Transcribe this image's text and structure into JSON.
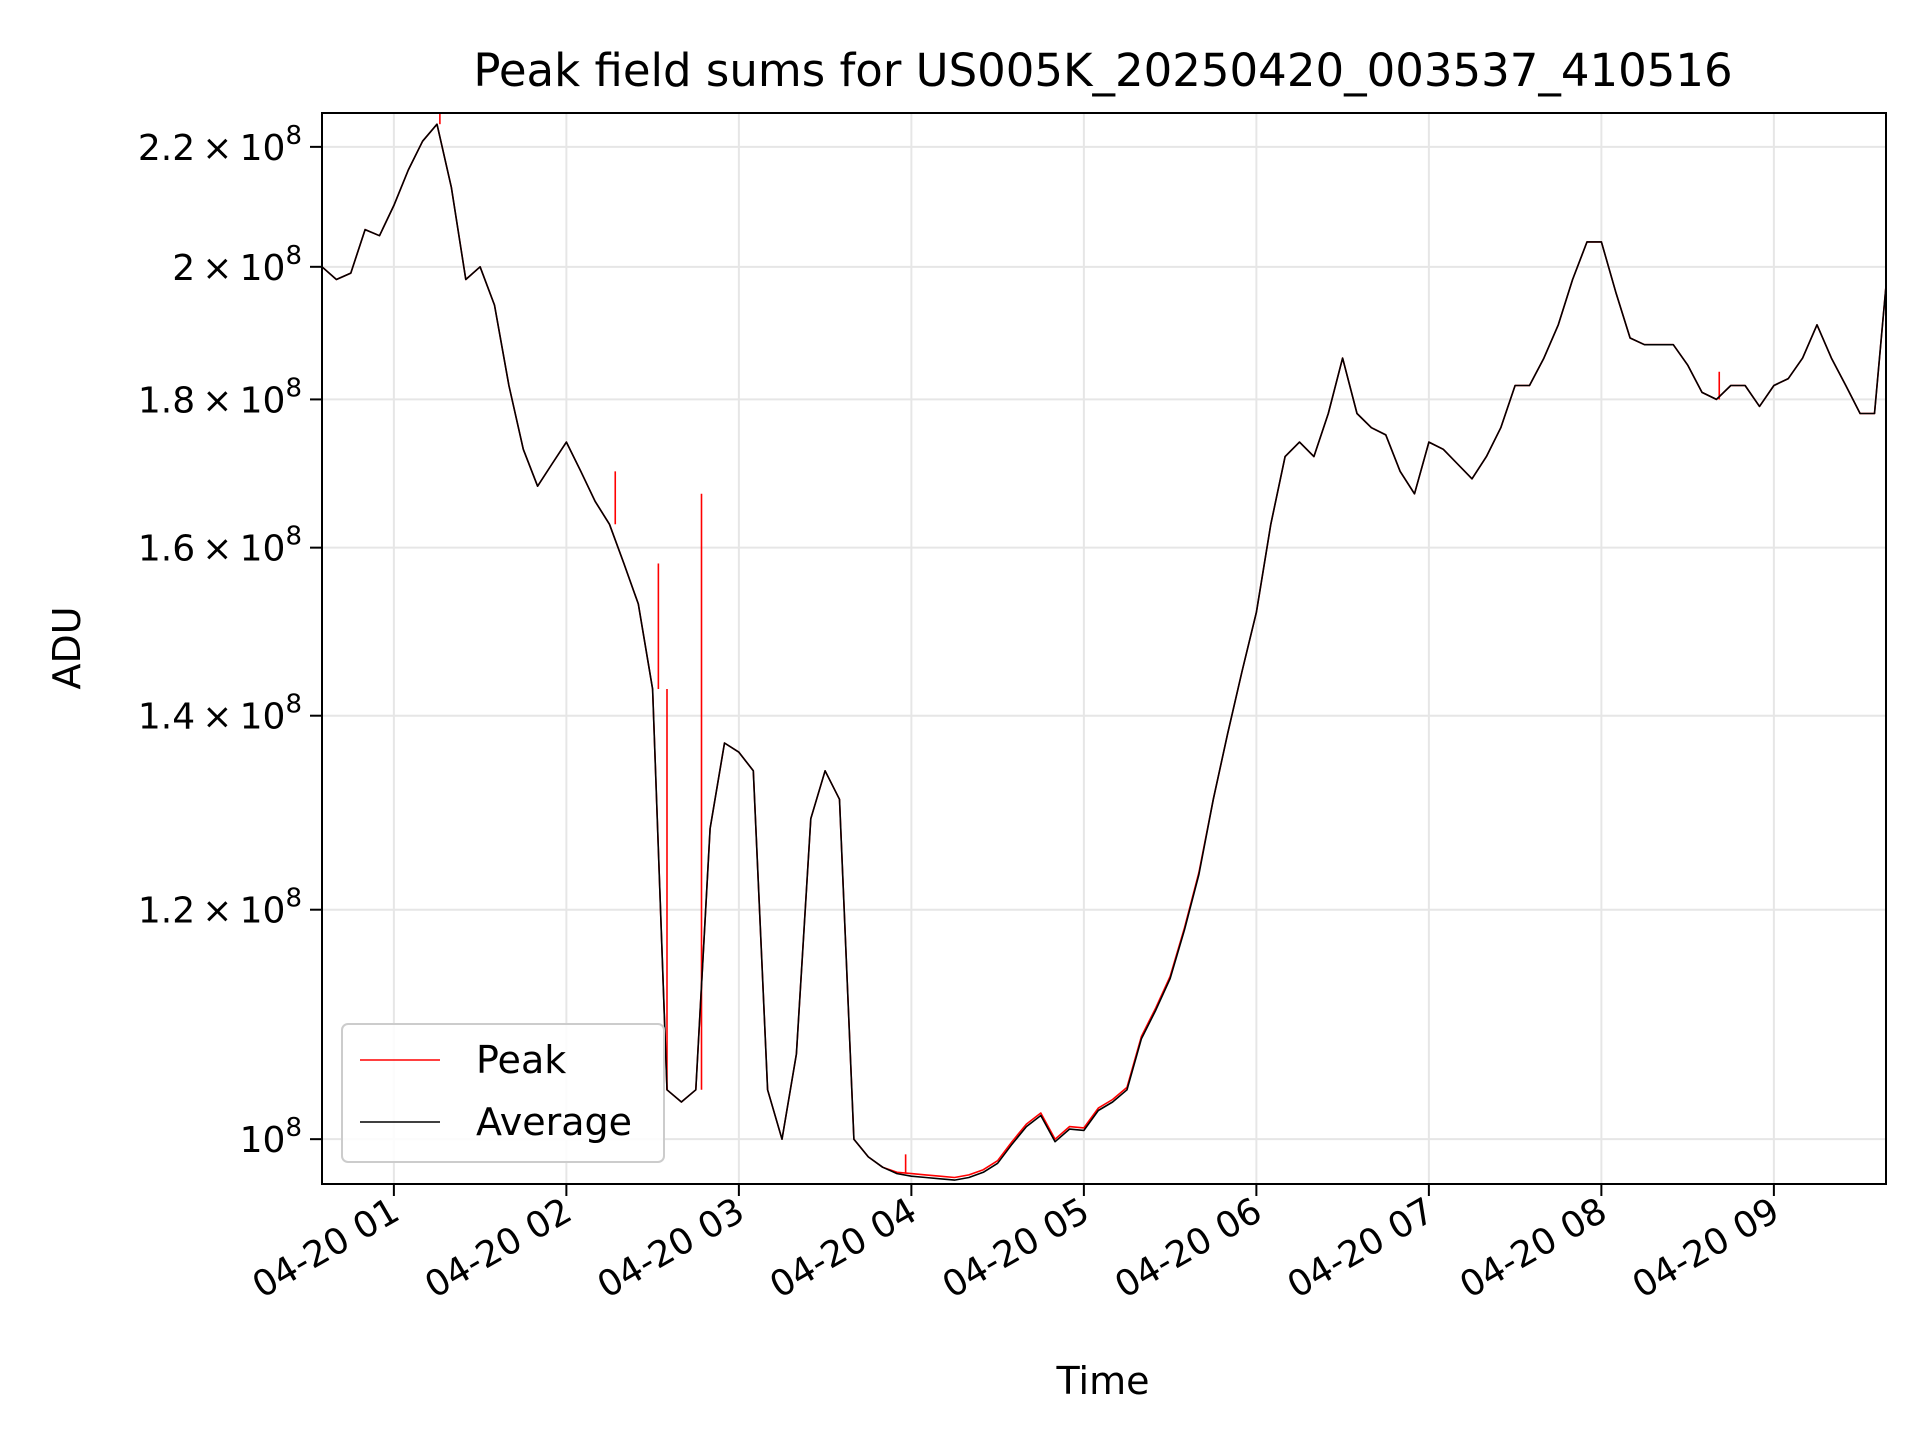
{
  "chart_data": {
    "type": "line",
    "title": "Peak field sums for US005K_20250420_003537_410516",
    "xlabel": "Time",
    "ylabel": "ADU",
    "yscale": "log",
    "grid": true,
    "legend_position": "lower-left",
    "xlim": [
      "2025-04-20 00:35",
      "2025-04-20 09:39"
    ],
    "ylim": [
      96500000,
      226000000
    ],
    "x_ticks": [
      {
        "value": "2025-04-20 01:00",
        "label": "04-20 01"
      },
      {
        "value": "2025-04-20 02:00",
        "label": "04-20 02"
      },
      {
        "value": "2025-04-20 03:00",
        "label": "04-20 03"
      },
      {
        "value": "2025-04-20 04:00",
        "label": "04-20 04"
      },
      {
        "value": "2025-04-20 05:00",
        "label": "04-20 05"
      },
      {
        "value": "2025-04-20 06:00",
        "label": "04-20 06"
      },
      {
        "value": "2025-04-20 07:00",
        "label": "04-20 07"
      },
      {
        "value": "2025-04-20 08:00",
        "label": "04-20 08"
      },
      {
        "value": "2025-04-20 09:00",
        "label": "04-20 09"
      }
    ],
    "y_ticks": [
      {
        "value": 100000000,
        "mant": "",
        "base": "10",
        "exp": "8"
      },
      {
        "value": 120000000,
        "mant": "1.2",
        "base": "10",
        "exp": "8"
      },
      {
        "value": 140000000,
        "mant": "1.4",
        "base": "10",
        "exp": "8"
      },
      {
        "value": 160000000,
        "mant": "1.6",
        "base": "10",
        "exp": "8"
      },
      {
        "value": 180000000,
        "mant": "1.8",
        "base": "10",
        "exp": "8"
      },
      {
        "value": 200000000,
        "mant": "2",
        "base": "10",
        "exp": "8"
      },
      {
        "value": 220000000,
        "mant": "2.2",
        "base": "10",
        "exp": "8"
      }
    ],
    "x": [
      "2025-04-20 00:35",
      "2025-04-20 00:40",
      "2025-04-20 00:45",
      "2025-04-20 00:50",
      "2025-04-20 00:55",
      "2025-04-20 01:00",
      "2025-04-20 01:05",
      "2025-04-20 01:10",
      "2025-04-20 01:15",
      "2025-04-20 01:20",
      "2025-04-20 01:25",
      "2025-04-20 01:30",
      "2025-04-20 01:35",
      "2025-04-20 01:40",
      "2025-04-20 01:45",
      "2025-04-20 01:50",
      "2025-04-20 01:55",
      "2025-04-20 02:00",
      "2025-04-20 02:05",
      "2025-04-20 02:10",
      "2025-04-20 02:15",
      "2025-04-20 02:20",
      "2025-04-20 02:25",
      "2025-04-20 02:30",
      "2025-04-20 02:35",
      "2025-04-20 02:40",
      "2025-04-20 02:45",
      "2025-04-20 02:50",
      "2025-04-20 02:55",
      "2025-04-20 03:00",
      "2025-04-20 03:05",
      "2025-04-20 03:10",
      "2025-04-20 03:15",
      "2025-04-20 03:20",
      "2025-04-20 03:25",
      "2025-04-20 03:30",
      "2025-04-20 03:35",
      "2025-04-20 03:40",
      "2025-04-20 03:45",
      "2025-04-20 03:50",
      "2025-04-20 03:55",
      "2025-04-20 04:00",
      "2025-04-20 04:05",
      "2025-04-20 04:10",
      "2025-04-20 04:15",
      "2025-04-20 04:20",
      "2025-04-20 04:25",
      "2025-04-20 04:30",
      "2025-04-20 04:35",
      "2025-04-20 04:40",
      "2025-04-20 04:45",
      "2025-04-20 04:50",
      "2025-04-20 04:55",
      "2025-04-20 05:00",
      "2025-04-20 05:05",
      "2025-04-20 05:10",
      "2025-04-20 05:15",
      "2025-04-20 05:20",
      "2025-04-20 05:25",
      "2025-04-20 05:30",
      "2025-04-20 05:35",
      "2025-04-20 05:40",
      "2025-04-20 05:45",
      "2025-04-20 05:50",
      "2025-04-20 05:55",
      "2025-04-20 06:00",
      "2025-04-20 06:05",
      "2025-04-20 06:10",
      "2025-04-20 06:15",
      "2025-04-20 06:20",
      "2025-04-20 06:25",
      "2025-04-20 06:30",
      "2025-04-20 06:35",
      "2025-04-20 06:40",
      "2025-04-20 06:45",
      "2025-04-20 06:50",
      "2025-04-20 06:55",
      "2025-04-20 07:00",
      "2025-04-20 07:05",
      "2025-04-20 07:10",
      "2025-04-20 07:15",
      "2025-04-20 07:20",
      "2025-04-20 07:25",
      "2025-04-20 07:30",
      "2025-04-20 07:35",
      "2025-04-20 07:40",
      "2025-04-20 07:45",
      "2025-04-20 07:50",
      "2025-04-20 07:55",
      "2025-04-20 08:00",
      "2025-04-20 08:05",
      "2025-04-20 08:10",
      "2025-04-20 08:15",
      "2025-04-20 08:20",
      "2025-04-20 08:25",
      "2025-04-20 08:30",
      "2025-04-20 08:35",
      "2025-04-20 08:40",
      "2025-04-20 08:45",
      "2025-04-20 08:50",
      "2025-04-20 08:55",
      "2025-04-20 09:00",
      "2025-04-20 09:05",
      "2025-04-20 09:10",
      "2025-04-20 09:15",
      "2025-04-20 09:20",
      "2025-04-20 09:25",
      "2025-04-20 09:30",
      "2025-04-20 09:35",
      "2025-04-20 09:39"
    ],
    "series": [
      {
        "name": "Peak",
        "color": "#ff0000",
        "values": [
          200000000,
          198000000,
          199000000,
          206000000,
          205000000,
          210000000,
          216000000,
          221000000,
          224000000,
          213000000,
          198000000,
          200000000,
          194000000,
          182000000,
          173000000,
          168000000,
          171000000,
          174000000,
          170000000,
          166000000,
          163000000,
          158000000,
          153000000,
          143000000,
          104000000,
          103000000,
          104000000,
          128000000,
          137000000,
          136000000,
          134000000,
          104000000,
          100000000,
          107000000,
          129000000,
          134000000,
          131000000,
          100000000,
          98600000,
          97800000,
          97400000,
          97300000,
          97200000,
          97100000,
          97000000,
          97200000,
          97600000,
          98300000,
          99800000,
          101200000,
          102100000,
          100000000,
          101000000,
          100900000,
          102500000,
          103200000,
          104200000,
          108500000,
          111000000,
          113800000,
          118300000,
          123600000,
          131000000,
          138000000,
          145000000,
          152000000,
          163000000,
          172000000,
          174000000,
          172000000,
          178000000,
          186000000,
          178000000,
          176000000,
          175000000,
          170000000,
          167000000,
          174000000,
          173000000,
          171000000,
          169000000,
          172000000,
          176000000,
          182000000,
          182000000,
          186000000,
          191000000,
          198000000,
          204000000,
          204000000,
          196000000,
          189000000,
          188000000,
          188000000,
          188000000,
          185000000,
          181000000,
          180000000,
          182000000,
          182000000,
          179000000,
          182000000,
          183000000,
          186000000,
          191000000,
          186000000,
          182000000,
          178000000,
          178000000,
          197000000
        ],
        "spikes": [
          {
            "x": "2025-04-20 00:35",
            "y": 212000000
          },
          {
            "x": "2025-04-20 01:16",
            "y": 226000000
          },
          {
            "x": "2025-04-20 02:17",
            "y": 170000000
          },
          {
            "x": "2025-04-20 02:32",
            "y": 158000000
          },
          {
            "x": "2025-04-20 02:35",
            "y": 143000000
          },
          {
            "x": "2025-04-20 02:47",
            "y": 167000000
          },
          {
            "x": "2025-04-20 03:58",
            "y": 98800000
          },
          {
            "x": "2025-04-20 08:41",
            "y": 184000000
          }
        ]
      },
      {
        "name": "Average",
        "color": "#000000",
        "values": [
          200000000,
          198000000,
          199000000,
          206000000,
          205000000,
          210000000,
          216000000,
          221000000,
          224000000,
          213000000,
          198000000,
          200000000,
          194000000,
          182000000,
          173000000,
          168000000,
          171000000,
          174000000,
          170000000,
          166000000,
          163000000,
          158000000,
          153000000,
          143000000,
          104000000,
          103000000,
          104000000,
          128000000,
          137000000,
          136000000,
          134000000,
          104000000,
          100000000,
          107000000,
          129000000,
          134000000,
          131000000,
          100000000,
          98600000,
          97800000,
          97300000,
          97100000,
          97000000,
          96900000,
          96800000,
          97000000,
          97400000,
          98100000,
          99600000,
          101000000,
          101900000,
          99800000,
          100800000,
          100700000,
          102300000,
          103000000,
          104000000,
          108300000,
          110800000,
          113600000,
          118100000,
          123400000,
          131000000,
          138000000,
          145000000,
          152000000,
          163000000,
          172000000,
          174000000,
          172000000,
          178000000,
          186000000,
          178000000,
          176000000,
          175000000,
          170000000,
          167000000,
          174000000,
          173000000,
          171000000,
          169000000,
          172000000,
          176000000,
          182000000,
          182000000,
          186000000,
          191000000,
          198000000,
          204000000,
          204000000,
          196000000,
          189000000,
          188000000,
          188000000,
          188000000,
          185000000,
          181000000,
          180000000,
          182000000,
          182000000,
          179000000,
          182000000,
          183000000,
          186000000,
          191000000,
          186000000,
          182000000,
          178000000,
          178000000,
          197000000
        ]
      }
    ]
  },
  "legend": {
    "items": [
      {
        "label": "Peak",
        "color": "#ff0000"
      },
      {
        "label": "Average",
        "color": "#000000"
      }
    ]
  }
}
